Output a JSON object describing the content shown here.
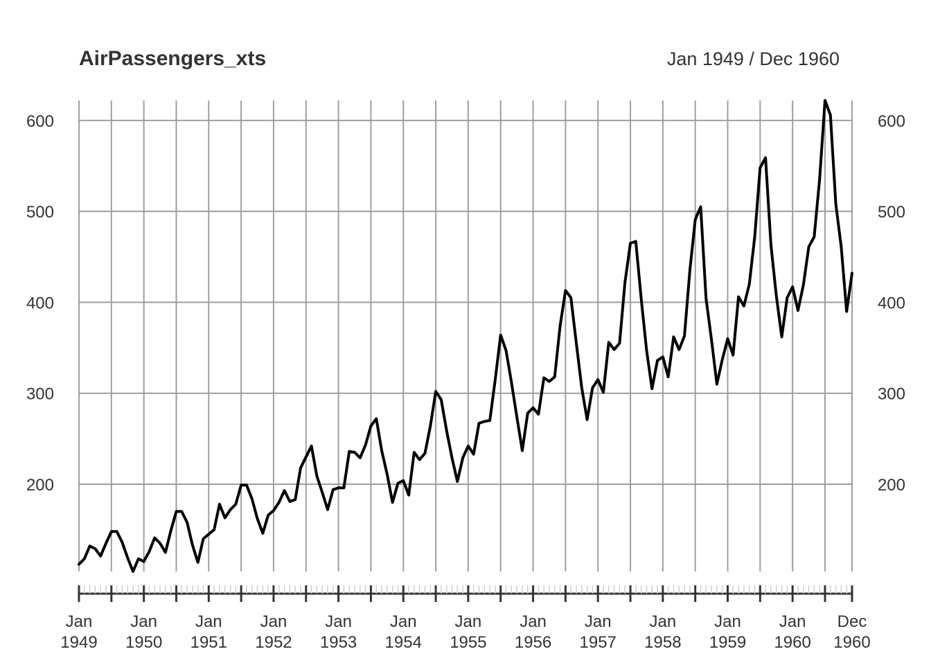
{
  "chart_data": {
    "type": "line",
    "title": "AirPassengers_xts",
    "subtitle": "Jan 1949 / Dec 1960",
    "xlabel": "",
    "ylabel": "",
    "grid": true,
    "legend": "none",
    "ylim": [
      104,
      622
    ],
    "y_ticks": [
      200,
      300,
      400,
      500,
      600
    ],
    "y_tick_labels": [
      "200",
      "300",
      "400",
      "500",
      "600"
    ],
    "x_start": "1949-01",
    "x_end": "1960-12",
    "x_ticks": [
      "1949-01",
      "1949-07",
      "1950-01",
      "1950-07",
      "1951-01",
      "1951-07",
      "1952-01",
      "1952-07",
      "1953-01",
      "1953-07",
      "1954-01",
      "1954-07",
      "1955-01",
      "1955-07",
      "1956-01",
      "1956-07",
      "1957-01",
      "1957-07",
      "1958-01",
      "1958-07",
      "1959-01",
      "1959-07",
      "1960-01",
      "1960-07",
      "1960-12"
    ],
    "x_tick_labels": [
      {
        "x": "1949-01",
        "line1": "Jan",
        "line2": "1949"
      },
      {
        "x": "1950-01",
        "line1": "Jan",
        "line2": "1950"
      },
      {
        "x": "1951-01",
        "line1": "Jan",
        "line2": "1951"
      },
      {
        "x": "1952-01",
        "line1": "Jan",
        "line2": "1952"
      },
      {
        "x": "1953-01",
        "line1": "Jan",
        "line2": "1953"
      },
      {
        "x": "1954-01",
        "line1": "Jan",
        "line2": "1954"
      },
      {
        "x": "1955-01",
        "line1": "Jan",
        "line2": "1955"
      },
      {
        "x": "1956-01",
        "line1": "Jan",
        "line2": "1956"
      },
      {
        "x": "1957-01",
        "line1": "Jan",
        "line2": "1957"
      },
      {
        "x": "1958-01",
        "line1": "Jan",
        "line2": "1958"
      },
      {
        "x": "1959-01",
        "line1": "Jan",
        "line2": "1959"
      },
      {
        "x": "1960-01",
        "line1": "Jan",
        "line2": "1960"
      },
      {
        "x": "1960-12",
        "line1": "Dec",
        "line2": "1960"
      }
    ],
    "series": [
      {
        "values": [
          112,
          118,
          132,
          129,
          121,
          135,
          148,
          148,
          136,
          119,
          104,
          118,
          115,
          126,
          141,
          135,
          125,
          149,
          170,
          170,
          158,
          133,
          114,
          140,
          145,
          150,
          178,
          163,
          172,
          178,
          199,
          199,
          184,
          162,
          146,
          166,
          171,
          180,
          193,
          181,
          183,
          218,
          230,
          242,
          209,
          191,
          172,
          194,
          196,
          196,
          236,
          235,
          229,
          243,
          264,
          272,
          237,
          211,
          180,
          201,
          204,
          188,
          235,
          227,
          234,
          264,
          302,
          293,
          259,
          229,
          203,
          229,
          242,
          233,
          267,
          269,
          270,
          315,
          364,
          347,
          312,
          274,
          237,
          278,
          284,
          277,
          317,
          313,
          318,
          374,
          413,
          405,
          355,
          306,
          271,
          306,
          315,
          301,
          356,
          348,
          355,
          422,
          465,
          467,
          404,
          347,
          305,
          336,
          340,
          318,
          362,
          348,
          363,
          435,
          491,
          505,
          404,
          359,
          310,
          337,
          360,
          342,
          406,
          396,
          420,
          472,
          548,
          559,
          463,
          407,
          362,
          405,
          417,
          391,
          419,
          461,
          472,
          535,
          622,
          606,
          508,
          461,
          390,
          432
        ]
      }
    ],
    "colors": {
      "line": "#000000",
      "grid": "#9e9e9e",
      "text": "#333333"
    }
  }
}
